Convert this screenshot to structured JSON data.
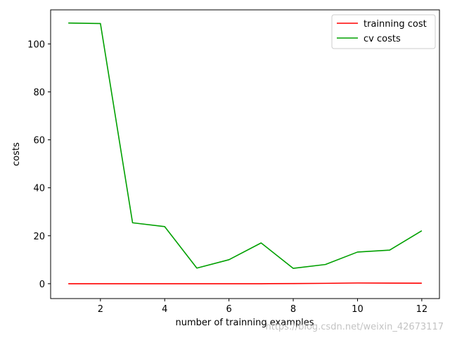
{
  "chart_data": {
    "type": "line",
    "title": "",
    "xlabel": "number of trainning examples",
    "ylabel": "costs",
    "xlim": [
      0.45,
      12.55
    ],
    "ylim": [
      -6.2,
      114.2
    ],
    "x": [
      1,
      2,
      3,
      4,
      5,
      6,
      7,
      8,
      9,
      10,
      11,
      12
    ],
    "xticks": [
      2,
      4,
      6,
      8,
      10,
      12
    ],
    "yticks": [
      0,
      20,
      40,
      60,
      80,
      100
    ],
    "grid": false,
    "legend_position": "top-right",
    "series": [
      {
        "name": "trainning cost",
        "color": "#ff0000",
        "values": [
          0.0,
          0.0,
          0.0,
          0.0,
          0.0,
          0.0,
          0.0,
          0.05,
          0.15,
          0.3,
          0.25,
          0.2
        ]
      },
      {
        "name": "cv costs",
        "color": "#00a000",
        "values": [
          108.7,
          108.5,
          25.4,
          23.8,
          6.5,
          10.0,
          17.0,
          6.4,
          8.0,
          13.2,
          14.0,
          22.1
        ]
      }
    ]
  },
  "watermark": "https://blog.csdn.net/weixin_42673117"
}
